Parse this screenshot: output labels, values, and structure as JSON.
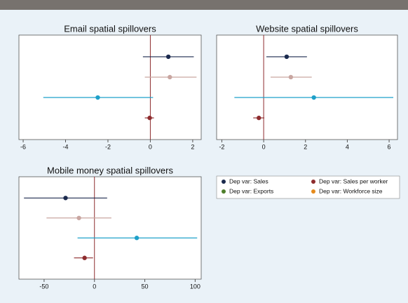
{
  "chart_data": [
    {
      "type": "errorbar",
      "title": "Email spatial spillovers",
      "xlim": [
        -6.2,
        2.4
      ],
      "xticks": [
        -6,
        -4,
        -2,
        0,
        2
      ],
      "xline": 0,
      "series": [
        {
          "color": "#1b2a4e",
          "values": [
            0.85
          ],
          "lower": [
            -0.35
          ],
          "upper": [
            2.05
          ]
        },
        {
          "color": "#c9a6a1",
          "values": [
            0.92
          ],
          "lower": [
            -0.26
          ],
          "upper": [
            2.18
          ]
        },
        {
          "color": "#1ea0c9",
          "values": [
            -2.48
          ],
          "lower": [
            -5.05
          ],
          "upper": [
            0.13
          ]
        },
        {
          "color": "#8e2c2e",
          "values": [
            -0.03
          ],
          "lower": [
            -0.26
          ],
          "upper": [
            0.17
          ]
        }
      ]
    },
    {
      "type": "errorbar",
      "title": "Website spatial spillovers",
      "xlim": [
        -2.25,
        6.4
      ],
      "xticks": [
        -2,
        0,
        2,
        4,
        6
      ],
      "xline": 0,
      "series": [
        {
          "color": "#1b2a4e",
          "values": [
            1.1
          ],
          "lower": [
            0.13
          ],
          "upper": [
            2.07
          ]
        },
        {
          "color": "#c9a6a1",
          "values": [
            1.3
          ],
          "lower": [
            0.33
          ],
          "upper": [
            2.3
          ]
        },
        {
          "color": "#1ea0c9",
          "values": [
            2.4
          ],
          "lower": [
            -1.4
          ],
          "upper": [
            6.2
          ]
        },
        {
          "color": "#8e2c2e",
          "values": [
            -0.23
          ],
          "lower": [
            -0.5
          ],
          "upper": [
            0.03
          ]
        }
      ]
    },
    {
      "type": "errorbar",
      "title": "Mobile money spatial spillovers",
      "xlim": [
        -75,
        106
      ],
      "xticks": [
        -50,
        0,
        50,
        100
      ],
      "xline": 0,
      "series": [
        {
          "color": "#1b2a4e",
          "values": [
            -28.7
          ],
          "lower": [
            -70
          ],
          "upper": [
            12.6
          ]
        },
        {
          "color": "#c9a6a1",
          "values": [
            -15.4
          ],
          "lower": [
            -47.6
          ],
          "upper": [
            16.8
          ]
        },
        {
          "color": "#1ea0c9",
          "values": [
            42
          ],
          "lower": [
            -16.8
          ],
          "upper": [
            102
          ]
        },
        {
          "color": "#8e2c2e",
          "values": [
            -9.8
          ],
          "lower": [
            -20.3
          ],
          "upper": [
            -1.4
          ]
        }
      ]
    }
  ],
  "legend": {
    "items": [
      {
        "name": "Dep var: Sales",
        "color": "#1b2a4e"
      },
      {
        "name": "Dep var: Sales per worker",
        "color": "#8e2c2e"
      },
      {
        "name": "Dep var: Exports",
        "color": "#4e7f2c"
      },
      {
        "name": "Dep var: Workforce size",
        "color": "#e58b1c"
      }
    ]
  }
}
